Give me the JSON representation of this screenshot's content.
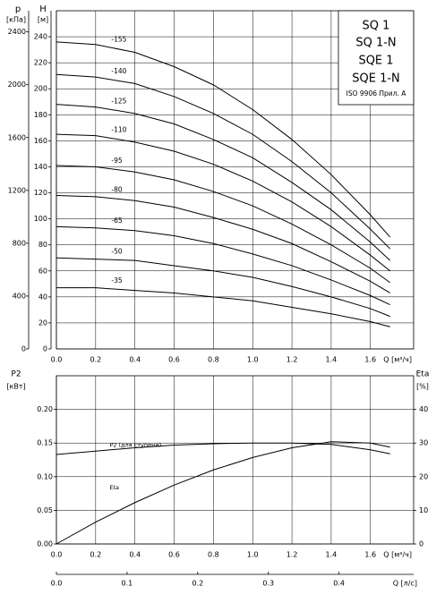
{
  "chart_data": [
    {
      "type": "line",
      "y_label": "H",
      "y_unit": "[м]",
      "y2_label": "p",
      "y2_unit": "[кПа]",
      "x_label": "Q [м³/ч]",
      "legend_box": [
        "SQ 1",
        "SQ 1-N",
        "SQE 1",
        "SQE 1-N"
      ],
      "annotation": "ISO 9906 Прил. A",
      "x": [
        0,
        0.2,
        0.4,
        0.6,
        0.8,
        1.0,
        1.2,
        1.4,
        1.6,
        1.7
      ],
      "xlim": [
        0,
        1.82
      ],
      "xticks": [
        {
          "value": 0,
          "label": "0.0"
        },
        0.2,
        0.4,
        0.6,
        0.8,
        {
          "value": 1,
          "label": "1.0"
        },
        1.2,
        1.4,
        1.6
      ],
      "ylim": [
        0,
        260
      ],
      "yticks": [
        0,
        20,
        40,
        60,
        80,
        100,
        120,
        140,
        160,
        180,
        200,
        220,
        240
      ],
      "y2lim": [
        0,
        2560
      ],
      "y2ticks": [
        0,
        400,
        800,
        1200,
        1600,
        2000,
        2400
      ],
      "y2_position": "left",
      "grid": true,
      "series": [
        {
          "name": "-155",
          "color": "#000000",
          "values": [
            236,
            234,
            228,
            217,
            203,
            184,
            161,
            134,
            103,
            86
          ]
        },
        {
          "name": "-140",
          "color": "#000000",
          "values": [
            211,
            209,
            204,
            194,
            181,
            165,
            144,
            120,
            92,
            77
          ]
        },
        {
          "name": "-125",
          "color": "#000000",
          "values": [
            188,
            186,
            181,
            173,
            161,
            147,
            128,
            107,
            82,
            68
          ]
        },
        {
          "name": "-110",
          "color": "#000000",
          "values": [
            165,
            164,
            159,
            152,
            142,
            129,
            113,
            94,
            72,
            60
          ]
        },
        {
          "name": "-95",
          "color": "#000000",
          "values": [
            141,
            140,
            136,
            130,
            121,
            110,
            96,
            80,
            62,
            51
          ]
        },
        {
          "name": "-80",
          "color": "#000000",
          "values": [
            118,
            117,
            114,
            109,
            101,
            92,
            81,
            67,
            52,
            43
          ]
        },
        {
          "name": "-65",
          "color": "#000000",
          "values": [
            94,
            93,
            91,
            87,
            81,
            73,
            64,
            53,
            41,
            34
          ]
        },
        {
          "name": "-50",
          "color": "#000000",
          "values": [
            70,
            69,
            68,
            64,
            60,
            55,
            48,
            40,
            31,
            25
          ]
        },
        {
          "name": "-35",
          "color": "#000000",
          "values": [
            47,
            47,
            45,
            43,
            40,
            37,
            32,
            27,
            21,
            17
          ]
        }
      ]
    },
    {
      "type": "line",
      "y_label": "P2",
      "y_unit": "[кВт]",
      "y2_label": "Eta",
      "y2_unit": "[%]",
      "x_label": "Q [м³/ч]",
      "x2_label": "Q [л/с]",
      "x": [
        0,
        0.2,
        0.4,
        0.6,
        0.8,
        1.0,
        1.2,
        1.4,
        1.6,
        1.7
      ],
      "xlim": [
        0,
        1.82
      ],
      "xticks": [
        {
          "value": 0,
          "label": "0.0"
        },
        0.2,
        0.4,
        0.6,
        0.8,
        {
          "value": 1,
          "label": "1.0"
        },
        1.2,
        1.4,
        1.6
      ],
      "x2lim": [
        0,
        0.5056
      ],
      "x2ticks": [
        {
          "value": 0,
          "label": "0.0"
        },
        0.1,
        0.2,
        0.3,
        0.4
      ],
      "ylim": [
        0,
        0.25
      ],
      "yticks": [
        {
          "value": 0,
          "label": "0.00"
        },
        {
          "value": 0.05,
          "label": "0.05"
        },
        {
          "value": 0.1,
          "label": "0.10"
        },
        {
          "value": 0.15,
          "label": "0.15"
        },
        {
          "value": 0.2,
          "label": "0.20"
        }
      ],
      "y2lim": [
        0,
        50
      ],
      "y2ticks": [
        0,
        10,
        20,
        30,
        40
      ],
      "y2_position": "right",
      "grid": true,
      "series": [
        {
          "name": "P2 (для ступени)",
          "color": "#000000",
          "values": [
            0.133,
            0.138,
            0.143,
            0.147,
            0.149,
            0.15,
            0.15,
            0.148,
            0.14,
            0.134
          ]
        },
        {
          "name": "Eta",
          "color": "#000000",
          "axis": "y2",
          "values": [
            0,
            6.5,
            12.3,
            17.5,
            22,
            25.7,
            28.6,
            30.4,
            30,
            28.8
          ]
        }
      ]
    }
  ]
}
